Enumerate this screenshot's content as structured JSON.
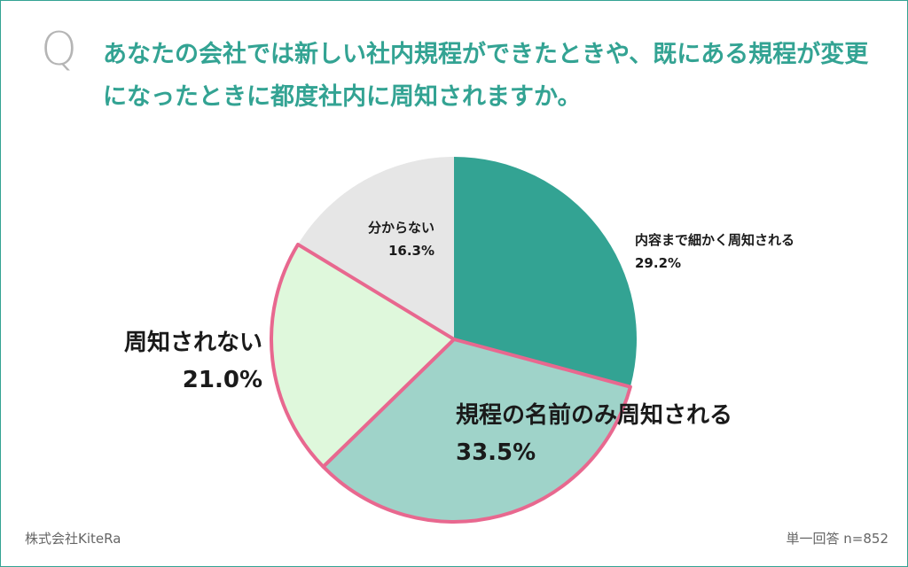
{
  "question": {
    "mark": "Q",
    "text": "あなたの会社では新しい社内規程ができたときや、既にある規程が変更になったときに都度社内に周知されますか。"
  },
  "footer": {
    "company": "株式会社KiteRa",
    "sample": "単一回答 n=852"
  },
  "colors": {
    "accent": "#33a393",
    "highlight_border": "#e8688f"
  },
  "chart_data": {
    "type": "pie",
    "start": "12 o'clock, clockwise",
    "slices": [
      {
        "name": "内容まで細かく周知される",
        "value": 29.2,
        "label": "29.2%",
        "color": "#33a393",
        "highlight": false
      },
      {
        "name": "規程の名前のみ周知される",
        "value": 33.5,
        "label": "33.5%",
        "color": "#9fd3c9",
        "highlight": true
      },
      {
        "name": "周知されない",
        "value": 21.0,
        "label": "21.0%",
        "color": "#dff8dc",
        "highlight": true
      },
      {
        "name": "分からない",
        "value": 16.3,
        "label": "16.3%",
        "color": "#e6e6e6",
        "highlight": false
      }
    ]
  }
}
